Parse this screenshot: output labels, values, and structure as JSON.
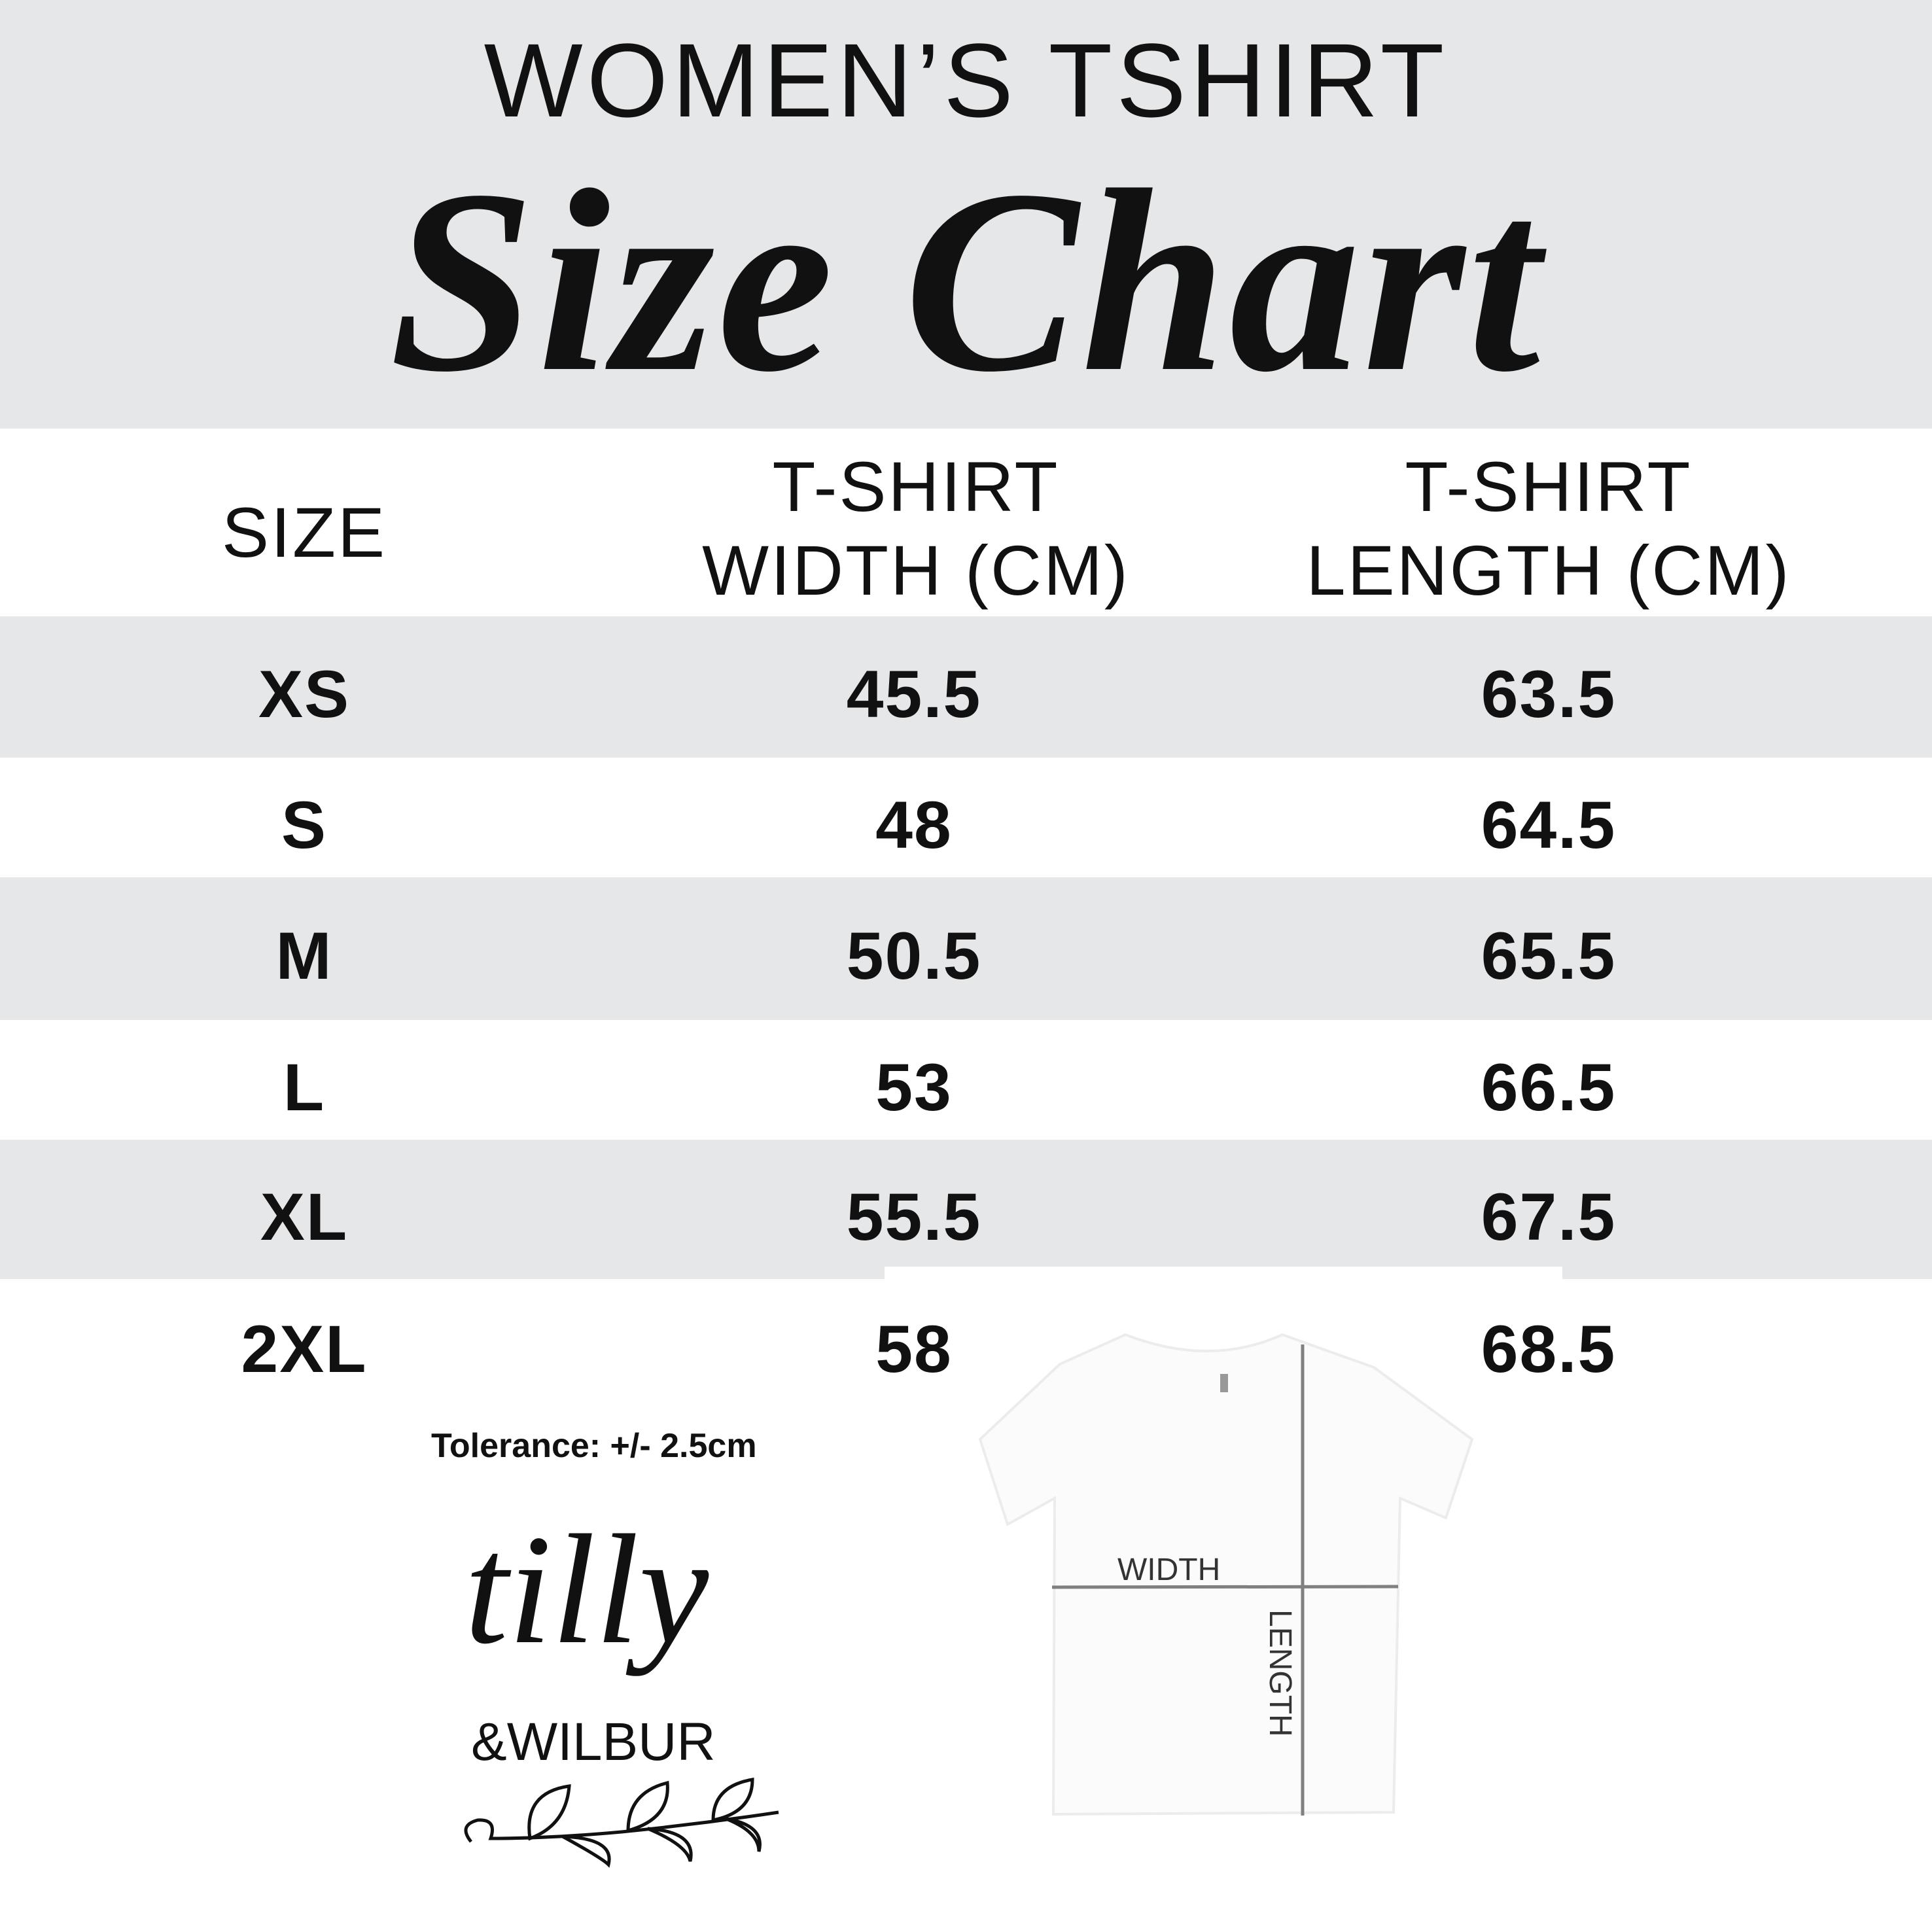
{
  "header": {
    "title": "WOMEN’S TSHIRT",
    "subtitle": "Size Chart"
  },
  "colors": {
    "band": "#e6e7e9",
    "text": "#111111",
    "measure_line": "#808080"
  },
  "table": {
    "columns": [
      "SIZE",
      "T-SHIRT WIDTH (CM)",
      "T-SHIRT LENGTH (CM)"
    ],
    "column_lines": [
      [
        "SIZE"
      ],
      [
        "T-SHIRT",
        "WIDTH (CM)"
      ],
      [
        "T-SHIRT",
        "LENGTH (CM)"
      ]
    ],
    "rows": [
      {
        "size": "XS",
        "width": "45.5",
        "length": "63.5"
      },
      {
        "size": "S",
        "width": "48",
        "length": "64.5"
      },
      {
        "size": "M",
        "width": "50.5",
        "length": "65.5"
      },
      {
        "size": "L",
        "width": "53",
        "length": "66.5"
      },
      {
        "size": "XL",
        "width": "55.5",
        "length": "67.5"
      },
      {
        "size": "2XL",
        "width": "58",
        "length": "68.5"
      }
    ]
  },
  "tolerance": "Tolerance: +/- 2.5cm",
  "diagram": {
    "width_label": "WIDTH",
    "length_label": "LENGTH"
  },
  "logo": {
    "line1": "tilly",
    "line2": "&WILBUR"
  }
}
